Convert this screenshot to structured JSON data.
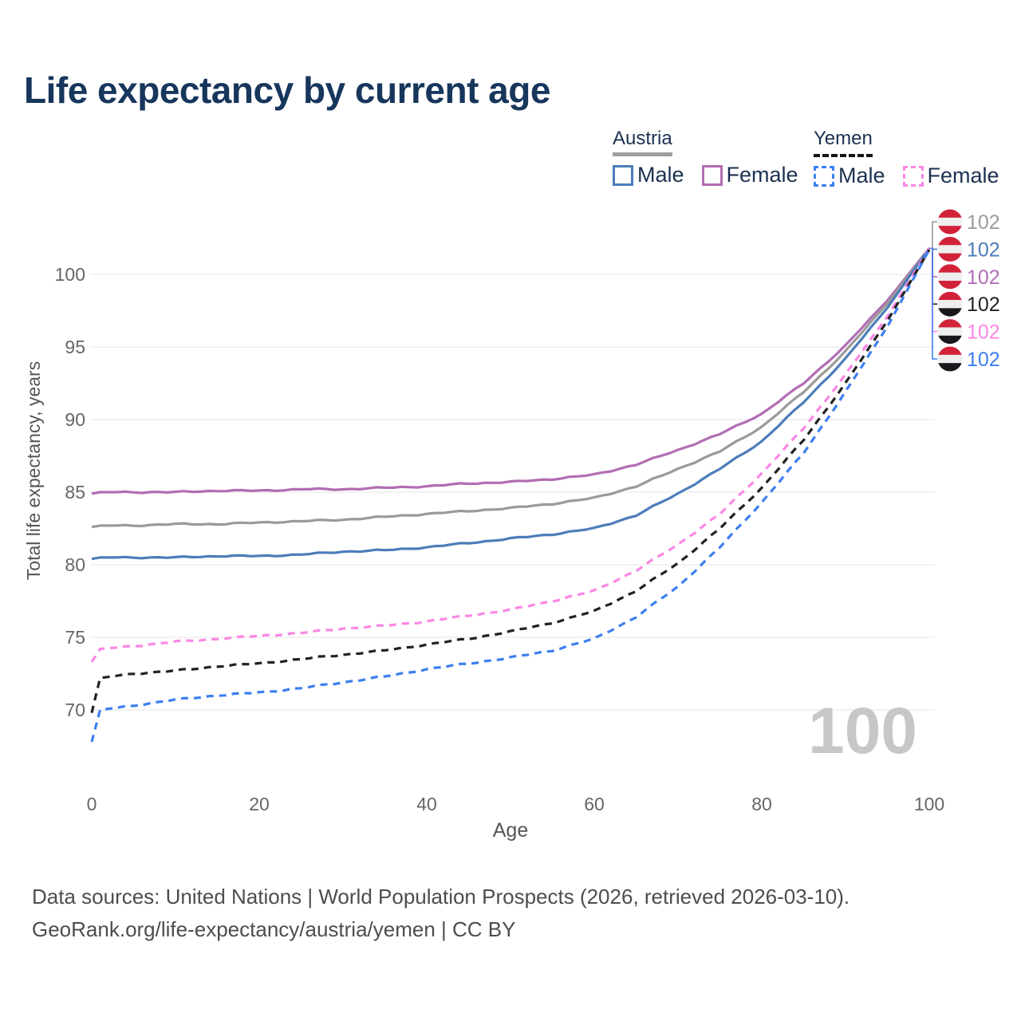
{
  "title": "Life expectancy by current age",
  "watermark": "100",
  "colors": {
    "title_text": "#17365c",
    "austria_male": "#4d7cba",
    "austria_female": "#b26db4",
    "austria_total": "#9a9a9a",
    "yemen_male": "#3d7ff0",
    "yemen_female": "#fb87e5",
    "yemen_total": "#222222",
    "gridline": "#e9e9e9",
    "axis_text": "#666666",
    "watermark_gray": "#c7c7c7"
  },
  "flags": {
    "austria": [
      "#d22239",
      "#efefef",
      "#d22239"
    ],
    "yemen": [
      "#d22239",
      "#efefef",
      "#17171c"
    ]
  },
  "legend": {
    "groups": [
      {
        "country": "Austria",
        "style": "solid",
        "items": [
          {
            "label": "Male",
            "series": "austria_male"
          },
          {
            "label": "Female",
            "series": "austria_female"
          }
        ]
      },
      {
        "country": "Yemen",
        "style": "dashed",
        "items": [
          {
            "label": "Male",
            "series": "yemen_male"
          },
          {
            "label": "Female",
            "series": "yemen_female"
          }
        ]
      }
    ]
  },
  "chart_data": {
    "type": "line",
    "title": "Life expectancy by current age",
    "xlabel": "Age",
    "ylabel": "Total life expectancy, years",
    "x_ticks": [
      0,
      20,
      40,
      60,
      80,
      100
    ],
    "y_ticks": [
      70,
      75,
      80,
      85,
      90,
      95,
      100
    ],
    "xlim": [
      0,
      100
    ],
    "ylim": [
      67,
      103
    ],
    "grid": "horizontal",
    "legend_position": "top-right",
    "x": [
      0,
      1,
      5,
      10,
      15,
      20,
      25,
      30,
      35,
      40,
      45,
      50,
      55,
      60,
      65,
      70,
      75,
      80,
      85,
      90,
      95,
      100
    ],
    "series": [
      {
        "id": "austria_female",
        "name": "Austria Female",
        "country": "Austria",
        "sex": "Female",
        "style": "solid",
        "color": "#b26db4",
        "end_value": 102,
        "values": [
          84.9,
          85.0,
          85.0,
          85.0,
          85.1,
          85.1,
          85.2,
          85.2,
          85.3,
          85.4,
          85.6,
          85.7,
          85.9,
          86.2,
          86.9,
          87.9,
          89.0,
          90.4,
          92.5,
          95.1,
          98.2,
          101.8
        ]
      },
      {
        "id": "austria_total",
        "name": "Austria",
        "country": "Austria",
        "sex": "Both",
        "style": "solid",
        "color": "#9a9a9a",
        "end_value": 102,
        "values": [
          82.6,
          82.7,
          82.7,
          82.8,
          82.8,
          82.9,
          83.0,
          83.1,
          83.3,
          83.5,
          83.7,
          83.9,
          84.2,
          84.6,
          85.4,
          86.6,
          87.8,
          89.5,
          91.9,
          94.7,
          98.0,
          101.8
        ]
      },
      {
        "id": "austria_male",
        "name": "Austria Male",
        "country": "Austria",
        "sex": "Male",
        "style": "solid",
        "color": "#4d7cba",
        "end_value": 102,
        "values": [
          80.4,
          80.5,
          80.5,
          80.5,
          80.6,
          80.6,
          80.7,
          80.9,
          81.0,
          81.2,
          81.5,
          81.8,
          82.1,
          82.5,
          83.4,
          84.9,
          86.6,
          88.5,
          91.2,
          94.2,
          97.7,
          101.8
        ]
      },
      {
        "id": "yemen_female",
        "name": "Yemen Female",
        "country": "Yemen",
        "sex": "Female",
        "style": "dashed",
        "color": "#fb87e5",
        "end_value": 102,
        "values": [
          73.3,
          74.2,
          74.4,
          74.7,
          74.9,
          75.1,
          75.3,
          75.6,
          75.8,
          76.1,
          76.5,
          76.9,
          77.5,
          78.2,
          79.6,
          81.4,
          83.5,
          86.3,
          89.4,
          93.1,
          97.1,
          101.8
        ]
      },
      {
        "id": "yemen_total",
        "name": "Yemen",
        "country": "Yemen",
        "sex": "Both",
        "style": "dashed",
        "color": "#222222",
        "end_value": 102,
        "values": [
          69.8,
          72.2,
          72.5,
          72.7,
          73.0,
          73.2,
          73.5,
          73.8,
          74.1,
          74.5,
          74.9,
          75.4,
          76.0,
          76.8,
          78.2,
          80.1,
          82.5,
          85.3,
          88.6,
          92.5,
          96.8,
          101.7
        ]
      },
      {
        "id": "yemen_male",
        "name": "Yemen Male",
        "country": "Yemen",
        "sex": "Male",
        "style": "dashed",
        "color": "#3d7ff0",
        "end_value": 102,
        "values": [
          67.8,
          70.0,
          70.3,
          70.7,
          71.0,
          71.2,
          71.5,
          71.9,
          72.3,
          72.8,
          73.2,
          73.6,
          74.1,
          74.9,
          76.4,
          78.5,
          81.2,
          84.3,
          87.7,
          91.9,
          96.4,
          101.7
        ]
      }
    ]
  },
  "end_labels": [
    {
      "flag": "austria",
      "value": "102",
      "series": "austria_total",
      "color": "#9a9a9a"
    },
    {
      "flag": "austria",
      "value": "102",
      "series": "austria_male",
      "color": "#4d7cba"
    },
    {
      "flag": "austria",
      "value": "102",
      "series": "austria_female",
      "color": "#b26db4"
    },
    {
      "flag": "yemen",
      "value": "102",
      "series": "yemen_total",
      "color": "#222222"
    },
    {
      "flag": "yemen",
      "value": "102",
      "series": "yemen_female",
      "color": "#fb87e5"
    },
    {
      "flag": "yemen",
      "value": "102",
      "series": "yemen_male",
      "color": "#3d7ff0"
    }
  ],
  "footer": {
    "line1": "Data sources: United Nations | World Population Prospects (2026, retrieved 2026-03-10).",
    "line2": "GeoRank.org/life-expectancy/austria/yemen | CC BY"
  }
}
